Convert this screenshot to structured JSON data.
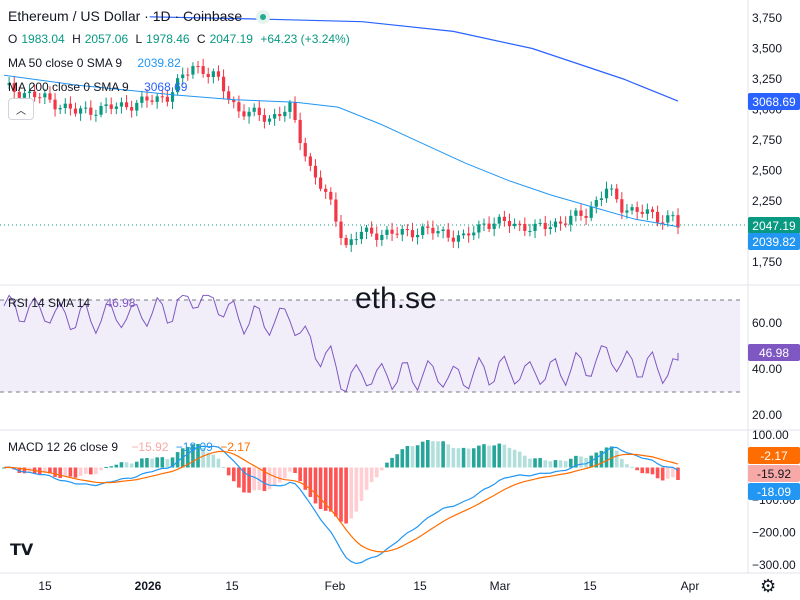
{
  "header": {
    "title": "Ethereum / US Dollar · 1D · Coinbase",
    "ohlc": [
      {
        "label": "O",
        "value": "1983.04"
      },
      {
        "label": "H",
        "value": "2057.06"
      },
      {
        "label": "L",
        "value": "1978.46"
      },
      {
        "label": "C",
        "value": "2047.19"
      }
    ],
    "change": "+64.23 (+3.24%)"
  },
  "indicators": {
    "ma50": {
      "label": "MA 50 close 0 SMA 9",
      "value": "2039.82"
    },
    "ma200": {
      "label": "MA 200 close 0 SMA 9",
      "value": "3068.69"
    },
    "rsi": {
      "label": "RSI 14 SMA 14",
      "value": "46.98"
    },
    "macd": {
      "label": "MACD 12 26 close 9",
      "hist": "−15.92",
      "macd": "−18.09",
      "signal": "−2.17"
    }
  },
  "watermark": "eth.se",
  "price_tags": {
    "ma200": "3068.69",
    "close": "2047.19",
    "ma50": "2039.82",
    "rsi": "46.98",
    "signal": "-2.17",
    "hist": "-15.92",
    "macd": "-18.09"
  },
  "colors": {
    "up": "#089981",
    "down": "#f23645",
    "ma50": "#2962ff",
    "ma200": "#2962ff",
    "rsi": "#7e57c2",
    "macd_line": "#2196f3",
    "signal_line": "#ff6d00"
  },
  "icons": {
    "logo": "tradingview-logo-icon",
    "settings": "gear-icon",
    "collapse": "chevron-up-icon"
  },
  "chart_data": [
    {
      "type": "candlestick",
      "title": "Ethereum / US Dollar · 1D · Coinbase",
      "x_ticks": [
        "15",
        "2026",
        "15",
        "Feb",
        "15",
        "Mar",
        "15",
        "Apr"
      ],
      "y_ticks": [
        3750,
        3500,
        3250,
        3000,
        2750,
        2500,
        2250,
        2000,
        1750
      ],
      "ylim": [
        1650,
        3800
      ],
      "date_range": [
        "2025-12-08",
        "2026-03-29"
      ],
      "series": [
        {
          "name": "MA 50 close 0 SMA 9",
          "type": "line",
          "points": [
            [
              "2025-12-08",
              3280
            ],
            [
              "2025-12-20",
              3200
            ],
            [
              "2026-01-05",
              3120
            ],
            [
              "2026-01-15",
              3080
            ],
            [
              "2026-01-25",
              3060
            ],
            [
              "2026-02-01",
              3020
            ],
            [
              "2026-02-08",
              2880
            ],
            [
              "2026-02-15",
              2720
            ],
            [
              "2026-02-22",
              2560
            ],
            [
              "2026-03-01",
              2420
            ],
            [
              "2026-03-08",
              2300
            ],
            [
              "2026-03-15",
              2200
            ],
            [
              "2026-03-22",
              2100
            ],
            [
              "2026-03-29",
              2040
            ]
          ]
        },
        {
          "name": "MA 200 close 0 SMA 9",
          "type": "line",
          "points": [
            [
              "2026-01-01",
              3760
            ],
            [
              "2026-01-20",
              3740
            ],
            [
              "2026-02-05",
              3720
            ],
            [
              "2026-02-20",
              3640
            ],
            [
              "2026-03-05",
              3500
            ],
            [
              "2026-03-20",
              3250
            ],
            [
              "2026-03-29",
              3069
            ]
          ]
        }
      ]
    },
    {
      "type": "line",
      "name": "RSI 14 SMA 14",
      "y_ticks": [
        60,
        40,
        20
      ],
      "bands": [
        30,
        70
      ],
      "last": 46.98
    },
    {
      "type": "bar+line",
      "name": "MACD 12 26 close 9",
      "y_ticks": [
        100,
        -100,
        -200,
        -300
      ],
      "last": {
        "macd": -18.09,
        "signal": -2.17,
        "hist": -15.92
      }
    }
  ]
}
